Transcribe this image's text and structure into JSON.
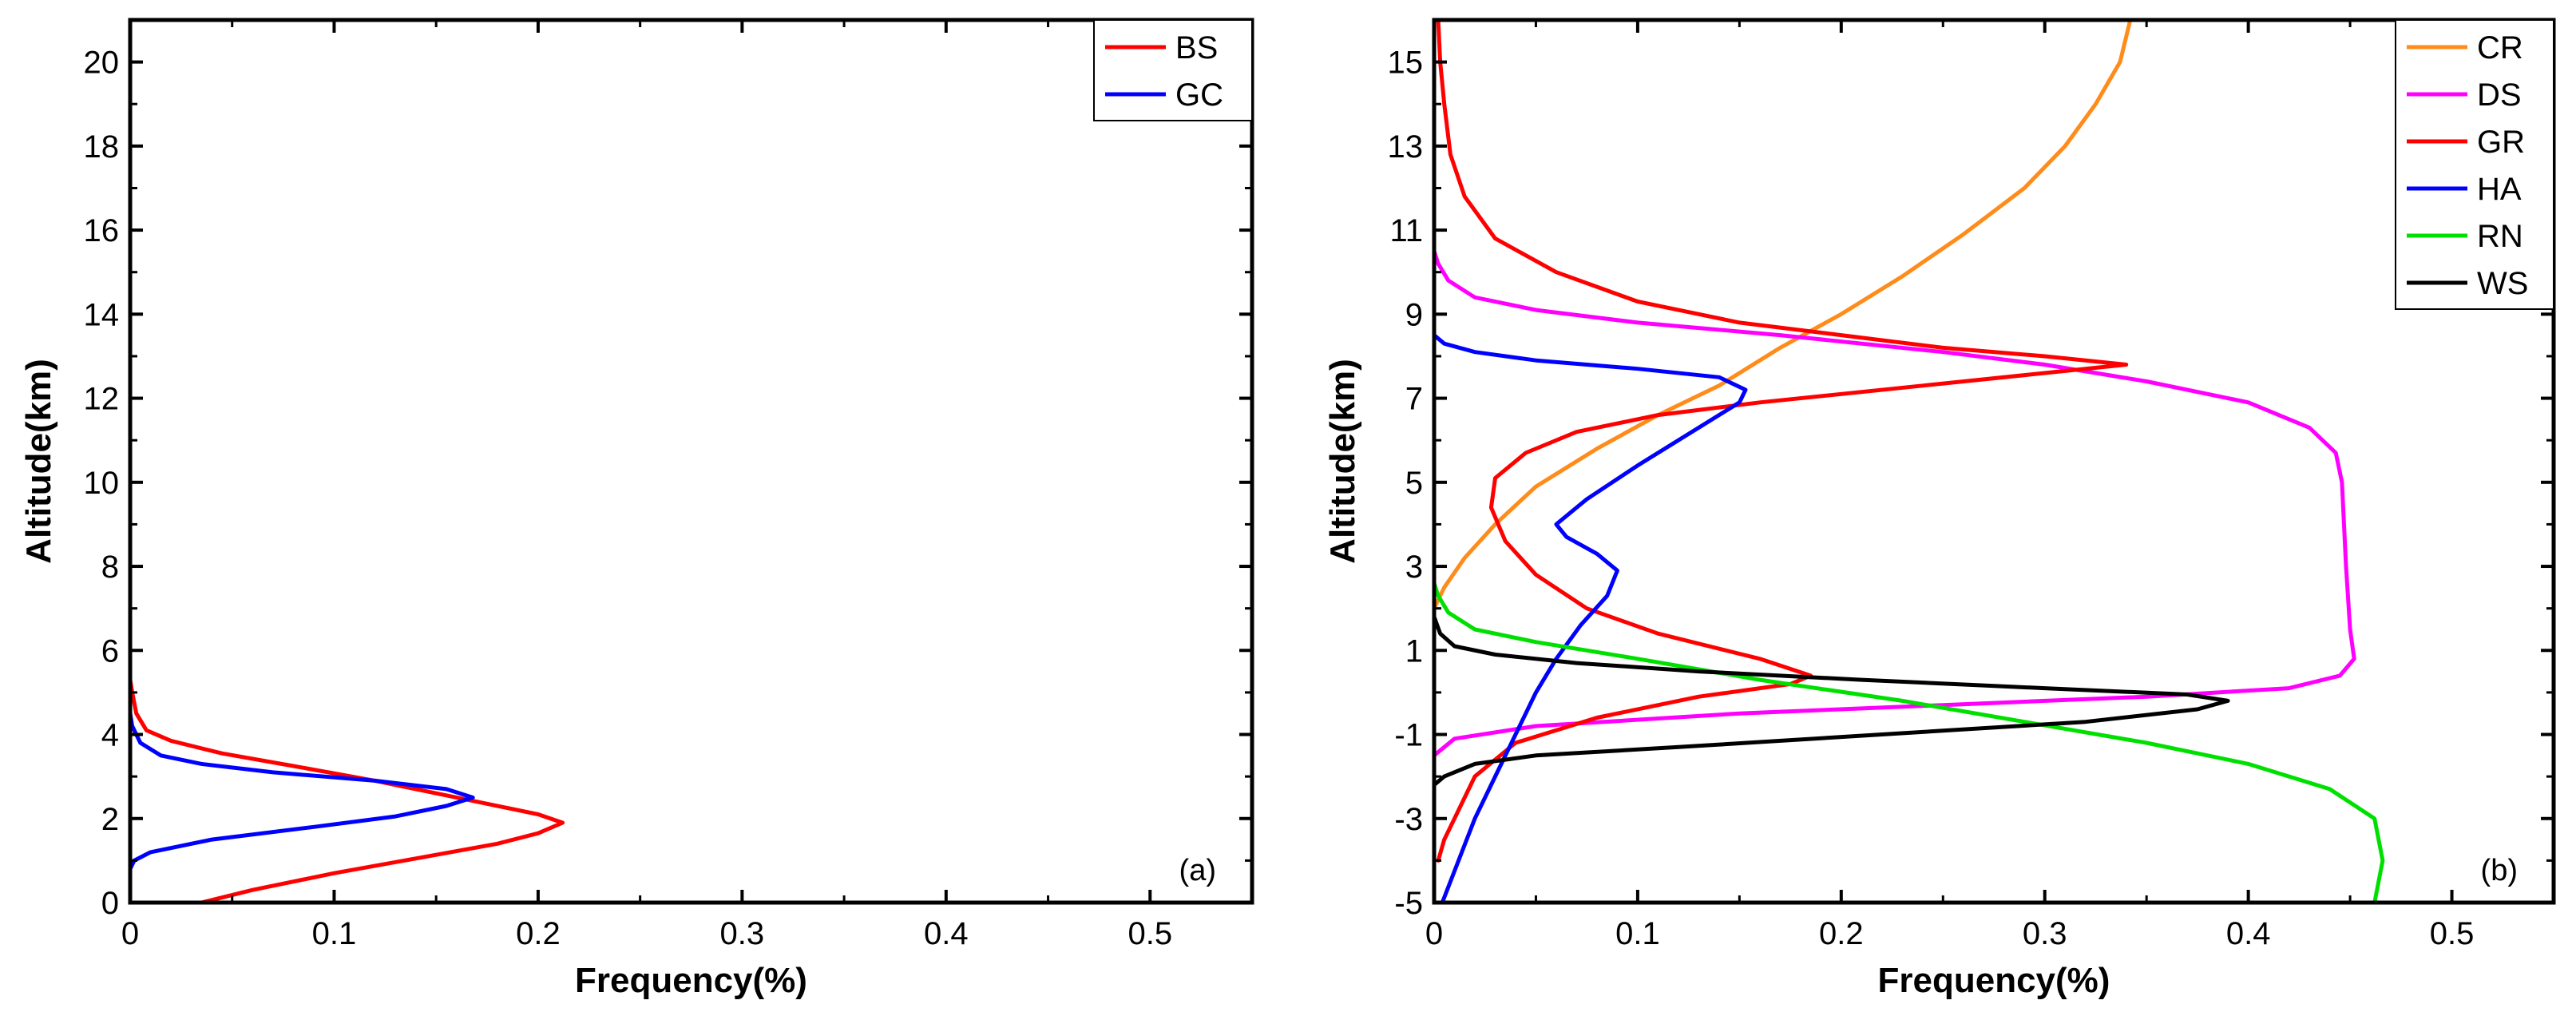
{
  "chart_data": [
    {
      "type": "line",
      "panel_label": "(a)",
      "xlabel": "Frequency(%)",
      "ylabel": "Altitude(km)",
      "xlim": [
        0,
        0.55
      ],
      "ylim": [
        0,
        21
      ],
      "xticks": [
        0,
        0.1,
        0.2,
        0.3,
        0.4,
        0.5
      ],
      "xtick_labels": [
        "0",
        "0.1",
        "0.2",
        "0.3",
        "0.4",
        "0.5"
      ],
      "yticks": [
        0,
        2,
        4,
        6,
        8,
        10,
        12,
        14,
        16,
        18,
        20
      ],
      "ytick_labels": [
        "0",
        "2",
        "4",
        "6",
        "8",
        "10",
        "12",
        "14",
        "16",
        "18",
        "20"
      ],
      "legend_position": "top-right",
      "series": [
        {
          "name": "BS",
          "color": "#ff0000",
          "points": [
            [
              0.035,
              0
            ],
            [
              0.06,
              0.3
            ],
            [
              0.1,
              0.7
            ],
            [
              0.14,
              1.05
            ],
            [
              0.18,
              1.4
            ],
            [
              0.2,
              1.65
            ],
            [
              0.212,
              1.9
            ],
            [
              0.2,
              2.1
            ],
            [
              0.17,
              2.4
            ],
            [
              0.12,
              2.9
            ],
            [
              0.08,
              3.25
            ],
            [
              0.045,
              3.55
            ],
            [
              0.02,
              3.85
            ],
            [
              0.008,
              4.1
            ],
            [
              0.003,
              4.5
            ],
            [
              0.001,
              5
            ],
            [
              0,
              5.3
            ]
          ]
        },
        {
          "name": "GC",
          "color": "#0000ff",
          "points": [
            [
              0,
              0.8
            ],
            [
              0.002,
              1.0
            ],
            [
              0.01,
              1.2
            ],
            [
              0.04,
              1.5
            ],
            [
              0.09,
              1.8
            ],
            [
              0.13,
              2.05
            ],
            [
              0.155,
              2.3
            ],
            [
              0.168,
              2.5
            ],
            [
              0.155,
              2.7
            ],
            [
              0.12,
              2.9
            ],
            [
              0.07,
              3.1
            ],
            [
              0.035,
              3.3
            ],
            [
              0.015,
              3.5
            ],
            [
              0.005,
              3.8
            ],
            [
              0.001,
              4.2
            ],
            [
              0,
              4.5
            ]
          ]
        }
      ]
    },
    {
      "type": "line",
      "panel_label": "(b)",
      "xlabel": "Frequency(%)",
      "ylabel": "Altitude(km)",
      "xlim": [
        0,
        0.55
      ],
      "ylim": [
        -5,
        16
      ],
      "xticks": [
        0,
        0.1,
        0.2,
        0.3,
        0.4,
        0.5
      ],
      "xtick_labels": [
        "0",
        "0.1",
        "0.2",
        "0.3",
        "0.4",
        "0.5"
      ],
      "yticks": [
        -5,
        -3,
        -1,
        1,
        3,
        5,
        7,
        9,
        11,
        13,
        15
      ],
      "ytick_labels": [
        "-5",
        "-3",
        "-1",
        "1",
        "3",
        "5",
        "7",
        "9",
        "11",
        "13",
        "15"
      ],
      "legend_position": "top-right",
      "series": [
        {
          "name": "CR",
          "color": "#ff8c1a",
          "points": [
            [
              0,
              2
            ],
            [
              0.005,
              2.5
            ],
            [
              0.015,
              3.2
            ],
            [
              0.03,
              4
            ],
            [
              0.05,
              4.9
            ],
            [
              0.08,
              5.8
            ],
            [
              0.11,
              6.6
            ],
            [
              0.14,
              7.3
            ],
            [
              0.17,
              8.2
            ],
            [
              0.2,
              9
            ],
            [
              0.23,
              9.9
            ],
            [
              0.26,
              10.9
            ],
            [
              0.29,
              12
            ],
            [
              0.31,
              13
            ],
            [
              0.325,
              14
            ],
            [
              0.337,
              15
            ],
            [
              0.342,
              16
            ]
          ]
        },
        {
          "name": "DS",
          "color": "#ff00ff",
          "points": [
            [
              0,
              -1.5
            ],
            [
              0.01,
              -1.1
            ],
            [
              0.05,
              -0.8
            ],
            [
              0.15,
              -0.5
            ],
            [
              0.25,
              -0.3
            ],
            [
              0.35,
              -0.1
            ],
            [
              0.42,
              0.1
            ],
            [
              0.445,
              0.4
            ],
            [
              0.452,
              0.8
            ],
            [
              0.45,
              1.5
            ],
            [
              0.448,
              3
            ],
            [
              0.446,
              5
            ],
            [
              0.443,
              5.7
            ],
            [
              0.43,
              6.3
            ],
            [
              0.4,
              6.9
            ],
            [
              0.35,
              7.4
            ],
            [
              0.3,
              7.8
            ],
            [
              0.25,
              8.1
            ],
            [
              0.17,
              8.5
            ],
            [
              0.1,
              8.8
            ],
            [
              0.05,
              9.1
            ],
            [
              0.02,
              9.4
            ],
            [
              0.007,
              9.8
            ],
            [
              0.002,
              10.2
            ],
            [
              0,
              10.5
            ]
          ]
        },
        {
          "name": "GR",
          "color": "#ff0000",
          "points": [
            [
              0.002,
              -4
            ],
            [
              0.005,
              -3.5
            ],
            [
              0.01,
              -3
            ],
            [
              0.02,
              -2
            ],
            [
              0.04,
              -1.2
            ],
            [
              0.08,
              -0.6
            ],
            [
              0.13,
              -0.1
            ],
            [
              0.175,
              0.2
            ],
            [
              0.185,
              0.4
            ],
            [
              0.16,
              0.8
            ],
            [
              0.11,
              1.4
            ],
            [
              0.075,
              2
            ],
            [
              0.05,
              2.8
            ],
            [
              0.035,
              3.6
            ],
            [
              0.028,
              4.4
            ],
            [
              0.03,
              5.1
            ],
            [
              0.045,
              5.7
            ],
            [
              0.07,
              6.2
            ],
            [
              0.11,
              6.6
            ],
            [
              0.16,
              6.9
            ],
            [
              0.24,
              7.3
            ],
            [
              0.34,
              7.8
            ],
            [
              0.3,
              8
            ],
            [
              0.25,
              8.2
            ],
            [
              0.2,
              8.5
            ],
            [
              0.15,
              8.8
            ],
            [
              0.1,
              9.3
            ],
            [
              0.06,
              10
            ],
            [
              0.03,
              10.8
            ],
            [
              0.015,
              11.8
            ],
            [
              0.008,
              12.8
            ],
            [
              0.005,
              14
            ],
            [
              0.003,
              15
            ],
            [
              0.002,
              16
            ]
          ]
        },
        {
          "name": "HA",
          "color": "#0000ff",
          "points": [
            [
              0.004,
              -5
            ],
            [
              0.012,
              -4
            ],
            [
              0.02,
              -3
            ],
            [
              0.03,
              -2
            ],
            [
              0.04,
              -1
            ],
            [
              0.05,
              0
            ],
            [
              0.06,
              0.8
            ],
            [
              0.072,
              1.6
            ],
            [
              0.085,
              2.3
            ],
            [
              0.09,
              2.9
            ],
            [
              0.08,
              3.3
            ],
            [
              0.065,
              3.7
            ],
            [
              0.06,
              4
            ],
            [
              0.075,
              4.6
            ],
            [
              0.1,
              5.4
            ],
            [
              0.13,
              6.3
            ],
            [
              0.15,
              6.9
            ],
            [
              0.153,
              7.2
            ],
            [
              0.14,
              7.5
            ],
            [
              0.1,
              7.7
            ],
            [
              0.05,
              7.9
            ],
            [
              0.02,
              8.1
            ],
            [
              0.005,
              8.3
            ],
            [
              0,
              8.5
            ]
          ]
        },
        {
          "name": "RN",
          "color": "#00e000",
          "points": [
            [
              0.462,
              -5
            ],
            [
              0.466,
              -4
            ],
            [
              0.462,
              -3
            ],
            [
              0.44,
              -2.3
            ],
            [
              0.4,
              -1.7
            ],
            [
              0.35,
              -1.2
            ],
            [
              0.29,
              -0.7
            ],
            [
              0.23,
              -0.2
            ],
            [
              0.16,
              0.3
            ],
            [
              0.1,
              0.8
            ],
            [
              0.05,
              1.2
            ],
            [
              0.02,
              1.5
            ],
            [
              0.007,
              1.9
            ],
            [
              0.002,
              2.3
            ],
            [
              0,
              2.6
            ]
          ]
        },
        {
          "name": "WS",
          "color": "#000000",
          "points": [
            [
              0,
              -2.2
            ],
            [
              0.005,
              -2
            ],
            [
              0.02,
              -1.7
            ],
            [
              0.05,
              -1.5
            ],
            [
              0.12,
              -1.3
            ],
            [
              0.22,
              -1
            ],
            [
              0.32,
              -0.7
            ],
            [
              0.375,
              -0.4
            ],
            [
              0.39,
              -0.2
            ],
            [
              0.37,
              -0.05
            ],
            [
              0.3,
              0.1
            ],
            [
              0.21,
              0.3
            ],
            [
              0.13,
              0.5
            ],
            [
              0.07,
              0.7
            ],
            [
              0.03,
              0.9
            ],
            [
              0.01,
              1.1
            ],
            [
              0.003,
              1.4
            ],
            [
              0,
              1.8
            ]
          ]
        }
      ]
    }
  ]
}
